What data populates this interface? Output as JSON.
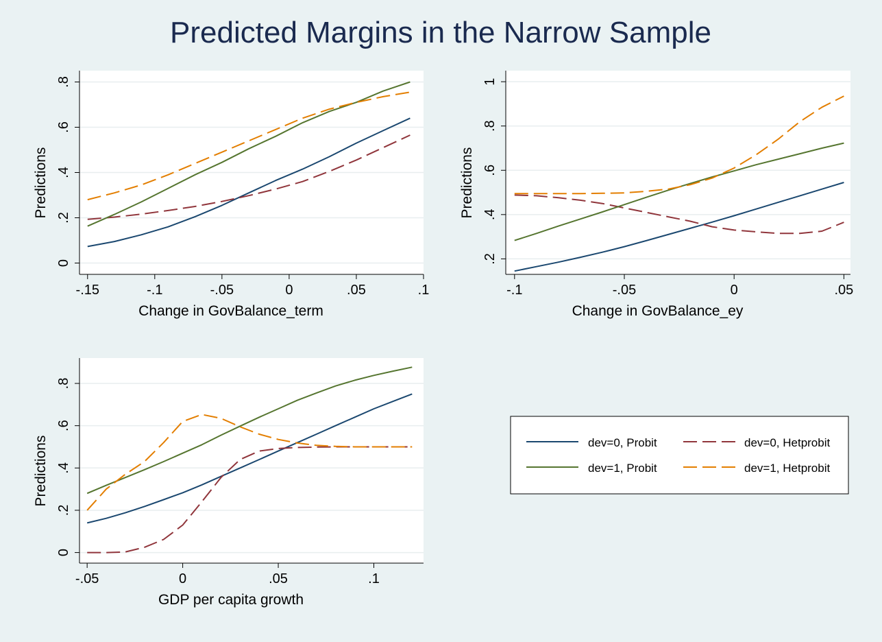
{
  "figure": {
    "title": "Predicted Margins in the Narrow Sample"
  },
  "series_styles": [
    {
      "key": "p0",
      "color": "#1a476f",
      "dash": ""
    },
    {
      "key": "h0",
      "color": "#90353b",
      "dash": "20,8"
    },
    {
      "key": "p1",
      "color": "#55752f",
      "dash": ""
    },
    {
      "key": "h1",
      "color": "#e37e00",
      "dash": "20,8"
    }
  ],
  "legend": {
    "entries": [
      {
        "key": "p0",
        "label": "dev=0, Probit"
      },
      {
        "key": "h0",
        "label": "dev=0, Hetprobit"
      },
      {
        "key": "p1",
        "label": "dev=1, Probit"
      },
      {
        "key": "h1",
        "label": "dev=1, Hetprobit"
      }
    ]
  },
  "chart_data": [
    {
      "type": "line",
      "xlabel": "Change in GovBalance_term",
      "ylabel": "Predictions",
      "xlim": [
        -0.156,
        0.1
      ],
      "ylim": [
        -0.05,
        0.85
      ],
      "xticks": [
        -0.15,
        -0.1,
        -0.05,
        0,
        0.05,
        0.1
      ],
      "xtick_labels": [
        "-.15",
        "-.1",
        "-.05",
        "0",
        ".05",
        ".1"
      ],
      "yticks": [
        0,
        0.2,
        0.4,
        0.6,
        0.8
      ],
      "ytick_labels": [
        "0",
        ".2",
        ".4",
        ".6",
        ".8"
      ],
      "grid": true,
      "x": [
        -0.15,
        -0.13,
        -0.11,
        -0.09,
        -0.07,
        -0.05,
        -0.03,
        -0.01,
        0.01,
        0.03,
        0.05,
        0.07,
        0.09
      ],
      "series": [
        {
          "key": "p0",
          "name": "dev=0, Probit",
          "values": [
            0.073,
            0.095,
            0.125,
            0.16,
            0.205,
            0.255,
            0.31,
            0.365,
            0.415,
            0.47,
            0.53,
            0.585,
            0.64
          ]
        },
        {
          "key": "h0",
          "name": "dev=0, Hetprobit",
          "values": [
            0.193,
            0.203,
            0.216,
            0.232,
            0.25,
            0.272,
            0.298,
            0.327,
            0.36,
            0.405,
            0.455,
            0.51,
            0.565
          ]
        },
        {
          "key": "p1",
          "name": "dev=1, Probit",
          "values": [
            0.163,
            0.215,
            0.27,
            0.33,
            0.39,
            0.445,
            0.505,
            0.56,
            0.62,
            0.67,
            0.71,
            0.76,
            0.8
          ]
        },
        {
          "key": "h1",
          "name": "dev=1, Hetprobit",
          "values": [
            0.28,
            0.31,
            0.345,
            0.39,
            0.44,
            0.49,
            0.54,
            0.59,
            0.64,
            0.68,
            0.71,
            0.735,
            0.755
          ]
        }
      ]
    },
    {
      "type": "line",
      "xlabel": "Change in GovBalance_ey",
      "ylabel": "Predictions",
      "xlim": [
        -0.104,
        0.053
      ],
      "ylim": [
        0.13,
        1.05
      ],
      "xticks": [
        -0.1,
        -0.05,
        0,
        0.05
      ],
      "xtick_labels": [
        "-.1",
        "-.05",
        "0",
        ".05"
      ],
      "yticks": [
        0.2,
        0.4,
        0.6,
        0.8,
        1
      ],
      "ytick_labels": [
        ".2",
        ".4",
        ".6",
        ".8",
        "1"
      ],
      "grid": true,
      "x": [
        -0.1,
        -0.09,
        -0.08,
        -0.07,
        -0.06,
        -0.05,
        -0.04,
        -0.03,
        -0.02,
        -0.01,
        0,
        0.01,
        0.02,
        0.03,
        0.04,
        0.05
      ],
      "series": [
        {
          "key": "p0",
          "name": "dev=0, Probit",
          "values": [
            0.145,
            0.165,
            0.185,
            0.207,
            0.23,
            0.255,
            0.282,
            0.31,
            0.338,
            0.366,
            0.395,
            0.425,
            0.455,
            0.485,
            0.515,
            0.545
          ]
        },
        {
          "key": "h0",
          "name": "dev=0, Hetprobit",
          "values": [
            0.488,
            0.485,
            0.476,
            0.465,
            0.45,
            0.43,
            0.41,
            0.39,
            0.37,
            0.345,
            0.33,
            0.322,
            0.315,
            0.315,
            0.325,
            0.365
          ]
        },
        {
          "key": "p1",
          "name": "dev=1, Probit",
          "values": [
            0.283,
            0.315,
            0.348,
            0.38,
            0.412,
            0.445,
            0.478,
            0.51,
            0.54,
            0.57,
            0.597,
            0.625,
            0.65,
            0.675,
            0.7,
            0.723
          ]
        },
        {
          "key": "h1",
          "name": "dev=1, Hetprobit",
          "values": [
            0.495,
            0.495,
            0.495,
            0.495,
            0.496,
            0.498,
            0.505,
            0.515,
            0.535,
            0.565,
            0.61,
            0.67,
            0.74,
            0.82,
            0.885,
            0.935
          ]
        }
      ]
    },
    {
      "type": "line",
      "xlabel": "GDP per capita growth",
      "ylabel": "Predictions",
      "xlim": [
        -0.054,
        0.126
      ],
      "ylim": [
        -0.05,
        0.92
      ],
      "xticks": [
        -0.05,
        0,
        0.05,
        0.1
      ],
      "xtick_labels": [
        "-.05",
        "0",
        ".05",
        ".1"
      ],
      "yticks": [
        0,
        0.2,
        0.4,
        0.6,
        0.8
      ],
      "ytick_labels": [
        "0",
        ".2",
        ".4",
        ".6",
        ".8"
      ],
      "grid": true,
      "x": [
        -0.05,
        -0.04,
        -0.03,
        -0.02,
        -0.01,
        0,
        0.01,
        0.02,
        0.03,
        0.04,
        0.05,
        0.06,
        0.07,
        0.08,
        0.09,
        0.1,
        0.11,
        0.12
      ],
      "series": [
        {
          "key": "p0",
          "name": "dev=0, Probit",
          "values": [
            0.14,
            0.162,
            0.188,
            0.218,
            0.25,
            0.283,
            0.32,
            0.36,
            0.4,
            0.44,
            0.48,
            0.52,
            0.56,
            0.6,
            0.64,
            0.68,
            0.715,
            0.75
          ]
        },
        {
          "key": "h0",
          "name": "dev=0, Hetprobit",
          "values": [
            0.0,
            0.0,
            0.003,
            0.025,
            0.062,
            0.13,
            0.24,
            0.355,
            0.44,
            0.48,
            0.492,
            0.497,
            0.499,
            0.5,
            0.5,
            0.5,
            0.5,
            0.5
          ]
        },
        {
          "key": "p1",
          "name": "dev=1, Probit",
          "values": [
            0.28,
            0.318,
            0.355,
            0.392,
            0.43,
            0.47,
            0.51,
            0.555,
            0.598,
            0.64,
            0.68,
            0.72,
            0.755,
            0.788,
            0.815,
            0.838,
            0.858,
            0.877
          ]
        },
        {
          "key": "h1",
          "name": "dev=1, Hetprobit",
          "values": [
            0.2,
            0.3,
            0.37,
            0.43,
            0.52,
            0.62,
            0.653,
            0.635,
            0.595,
            0.56,
            0.535,
            0.518,
            0.507,
            0.502,
            0.5,
            0.5,
            0.5,
            0.5
          ]
        }
      ]
    }
  ]
}
